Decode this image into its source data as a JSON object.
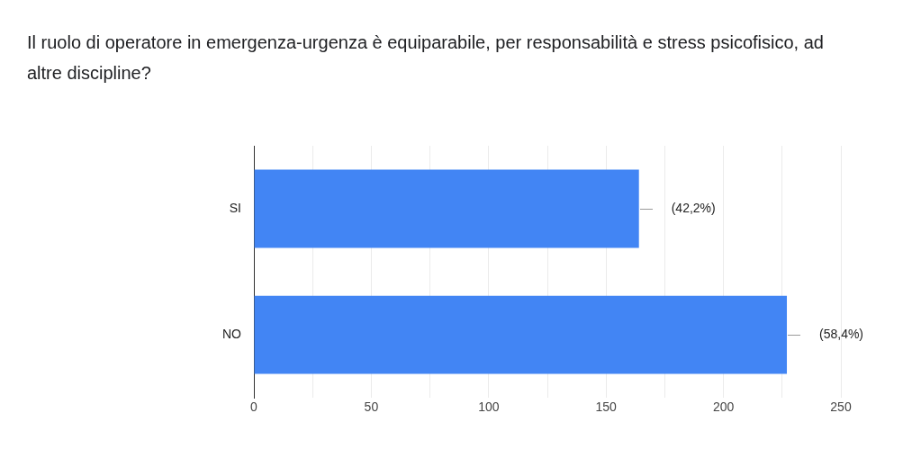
{
  "chart_data": {
    "type": "bar",
    "orientation": "horizontal",
    "title": "Il ruolo di operatore in emergenza-urgenza è equiparabile, per responsabilità e stress psicofisico, ad altre discipline?",
    "categories": [
      "SI",
      "NO"
    ],
    "values": [
      164,
      227
    ],
    "annotations": [
      {
        "text": "(42,2%)",
        "x": 164,
        "y": "SI"
      },
      {
        "text": "(58,4%)",
        "x": 227,
        "y": "NO"
      }
    ],
    "color": "#4285f4",
    "xlim": [
      0,
      250
    ],
    "xticks": [
      0,
      {
        "value": 25,
        "label": null
      },
      50,
      {
        "value": 75,
        "label": null
      },
      100,
      {
        "value": 125,
        "label": null
      },
      150,
      {
        "value": 175,
        "label": null
      },
      200,
      {
        "value": 225,
        "label": null
      },
      250
    ],
    "grid": "x",
    "legend": false
  }
}
